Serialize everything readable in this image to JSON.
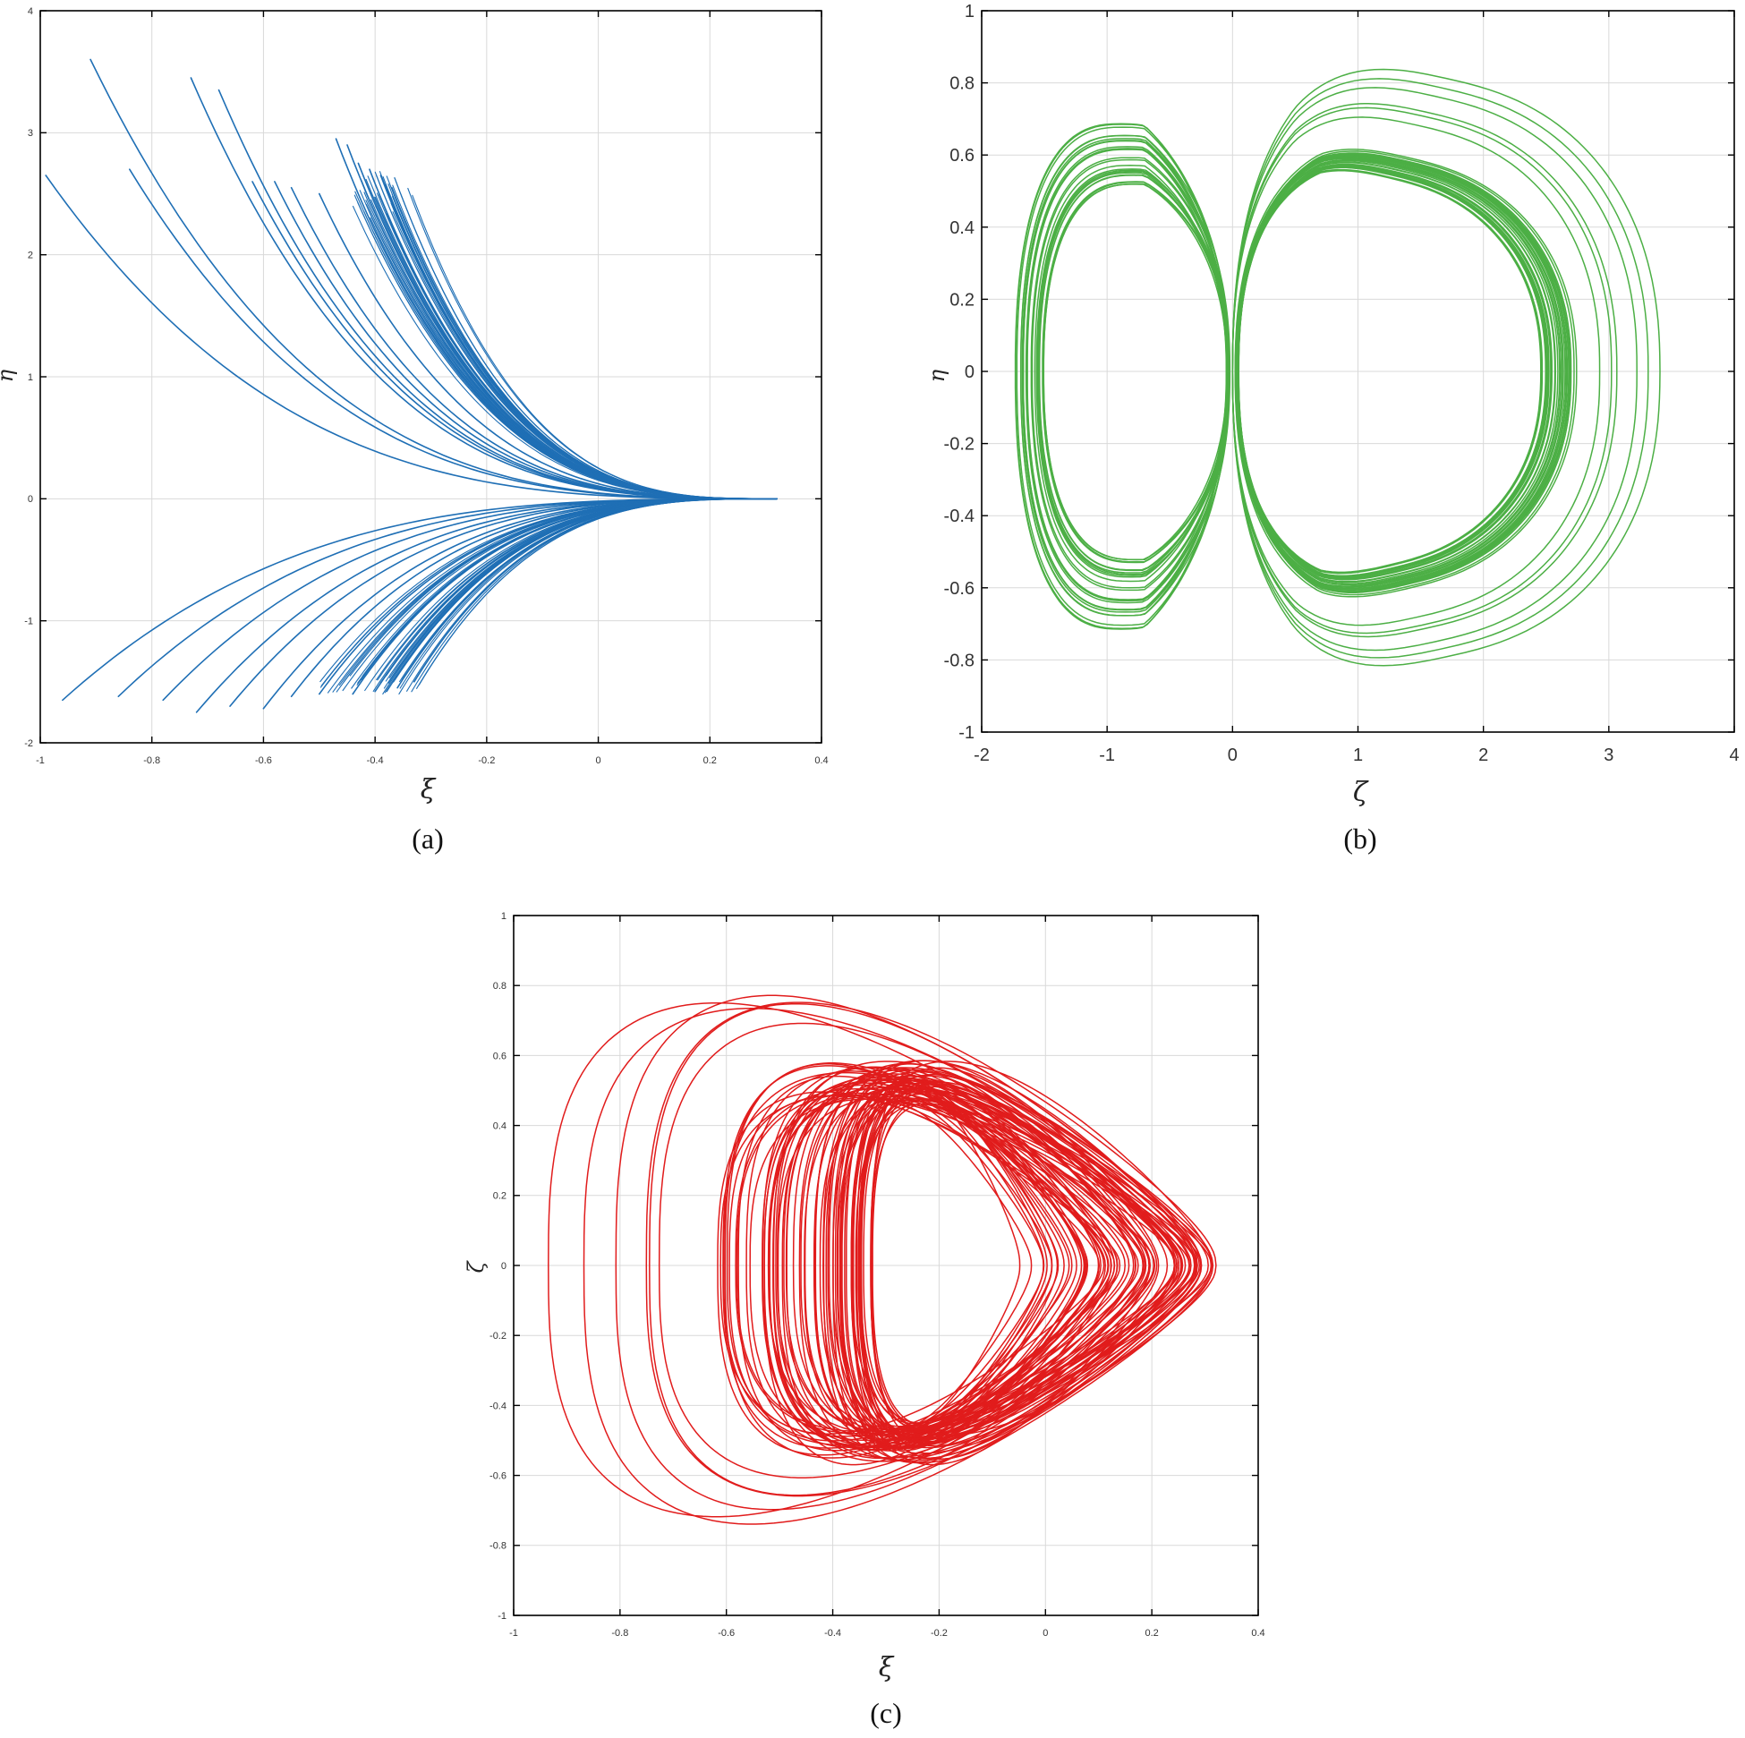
{
  "figure": {
    "background": "#ffffff",
    "grid_color": "#d9d9d9",
    "frame_color": "#000000"
  },
  "chart_data": [
    {
      "id": "a",
      "type": "line",
      "caption": "(a)",
      "xlabel": "ξ",
      "ylabel": "η",
      "xlim": [
        -1,
        0.4
      ],
      "ylim": [
        -2,
        4
      ],
      "xticks": [
        -1,
        -0.8,
        -0.6,
        -0.4,
        -0.2,
        0,
        0.2,
        0.4
      ],
      "yticks": [
        -2,
        -1,
        0,
        1,
        2,
        3,
        4
      ],
      "xtick_labels": [
        "-1",
        "-0.8",
        "-0.6",
        "-0.4",
        "-0.2",
        "0",
        "0.2",
        "0.4"
      ],
      "ytick_labels": [
        "-2",
        "-1",
        "0",
        "1",
        "2",
        "3",
        "4"
      ],
      "grid": "major",
      "color": "#1f6fb5",
      "series_note": "family of trajectories converging to (0.32, 0)",
      "endpoint": [
        0.32,
        0
      ],
      "upper_starts": [
        [
          -0.99,
          2.65
        ],
        [
          -0.91,
          3.6
        ],
        [
          -0.84,
          2.7
        ],
        [
          -0.73,
          3.45
        ],
        [
          -0.68,
          3.35
        ],
        [
          -0.62,
          2.6
        ],
        [
          -0.58,
          2.6
        ],
        [
          -0.55,
          2.55
        ],
        [
          -0.5,
          2.5
        ],
        [
          -0.47,
          2.95
        ],
        [
          -0.45,
          2.9
        ],
        [
          -0.43,
          2.75
        ],
        [
          -0.41,
          2.7
        ],
        [
          -0.39,
          2.65
        ],
        [
          -0.37,
          2.55
        ]
      ],
      "lower_starts": [
        [
          -0.96,
          -1.65
        ],
        [
          -0.86,
          -1.62
        ],
        [
          -0.78,
          -1.65
        ],
        [
          -0.72,
          -1.75
        ],
        [
          -0.66,
          -1.7
        ],
        [
          -0.6,
          -1.72
        ],
        [
          -0.55,
          -1.62
        ],
        [
          -0.5,
          -1.6
        ],
        [
          -0.44,
          -1.6
        ],
        [
          -0.4,
          -1.58
        ],
        [
          -0.36,
          -1.55
        ],
        [
          -0.33,
          -1.5
        ]
      ]
    },
    {
      "id": "b",
      "type": "line",
      "caption": "(b)",
      "xlabel": "ζ",
      "ylabel": "η",
      "xlim": [
        -2,
        4
      ],
      "ylim": [
        -1,
        1
      ],
      "xticks": [
        -2,
        -1,
        0,
        1,
        2,
        3,
        4
      ],
      "yticks": [
        -1,
        -0.8,
        -0.6,
        -0.4,
        -0.2,
        0,
        0.2,
        0.4,
        0.6,
        0.8,
        1
      ],
      "xtick_labels": [
        "-2",
        "-1",
        "0",
        "1",
        "2",
        "3",
        "4"
      ],
      "ytick_labels": [
        "-1",
        "-0.8",
        "-0.6",
        "-0.4",
        "-0.2",
        "0",
        "0.2",
        "0.4",
        "0.6",
        "0.8",
        "1"
      ],
      "grid": "major",
      "color": "#4caf45",
      "series_note": "double-scroll attractor; left lobe to ζ≈-1.75, right lobe to ζ≈3.55",
      "left_lobe": {
        "x_min": -1.75,
        "x_inner": -1.45,
        "y_max": 0.7,
        "y_min": -0.73
      },
      "right_lobe": {
        "x_max": 3.55,
        "x_inner": 2.45,
        "y_max": 0.95,
        "y_min": -0.92
      }
    },
    {
      "id": "c",
      "type": "line",
      "caption": "(c)",
      "xlabel": "ξ",
      "ylabel": "ζ",
      "xlim": [
        -1,
        0.4
      ],
      "ylim": [
        -1,
        1
      ],
      "xticks": [
        -1,
        -0.8,
        -0.6,
        -0.4,
        -0.2,
        0,
        0.2,
        0.4
      ],
      "yticks": [
        -1,
        -0.8,
        -0.6,
        -0.4,
        -0.2,
        0,
        0.2,
        0.4,
        0.6,
        0.8,
        1
      ],
      "xtick_labels": [
        "-1",
        "-0.8",
        "-0.6",
        "-0.4",
        "-0.2",
        "0",
        "0.2",
        "0.4"
      ],
      "ytick_labels": [
        "-1",
        "-0.8",
        "-0.6",
        "-0.4",
        "-0.2",
        "0",
        "0.2",
        "0.4",
        "0.6",
        "0.8",
        "1"
      ],
      "grid": "major",
      "color": "#e11c1c",
      "series_note": "single-scroll chaotic attractor; x from ≈-0.95 to ≈0.33",
      "outer": {
        "x_min": -0.95,
        "x_max": 0.33,
        "y_max": 0.95,
        "y_min": -0.93
      },
      "inner": {
        "x_min": -0.36,
        "x_max": -0.05,
        "y_max": 0.55,
        "y_min": -0.55
      }
    }
  ]
}
